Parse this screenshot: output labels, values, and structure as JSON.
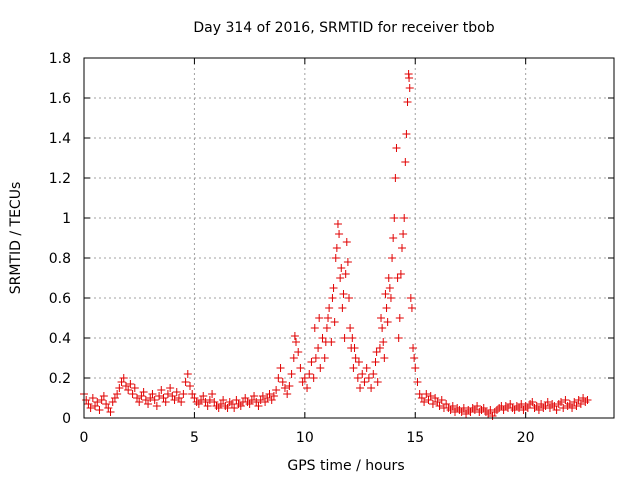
{
  "colors": {
    "series": "#e00000",
    "grid": "#a0a0a0",
    "axis": "#000000"
  },
  "chart_data": {
    "type": "scatter",
    "title": "Day 314 of 2016, SRMTID for receiver tbob",
    "xlabel": "GPS time / hours",
    "ylabel": "SRMTID / TECUs",
    "xlim": [
      0,
      24
    ],
    "ylim": [
      0,
      1.8
    ],
    "grid": true,
    "marker": "plus",
    "x_ticks": [
      {
        "value": 0,
        "label": "0"
      },
      {
        "value": 5,
        "label": "5"
      },
      {
        "value": 10,
        "label": "10"
      },
      {
        "value": 15,
        "label": "15"
      },
      {
        "value": 20,
        "label": "20"
      }
    ],
    "y_ticks": [
      {
        "value": 0,
        "label": "0"
      },
      {
        "value": 0.2,
        "label": "0.2"
      },
      {
        "value": 0.4,
        "label": "0.4"
      },
      {
        "value": 0.6,
        "label": "0.6"
      },
      {
        "value": 0.8,
        "label": "0.8"
      },
      {
        "value": 1.0,
        "label": "1"
      },
      {
        "value": 1.2,
        "label": "1.2"
      },
      {
        "value": 1.4,
        "label": "1.4"
      },
      {
        "value": 1.6,
        "label": "1.6"
      },
      {
        "value": 1.8,
        "label": "1.8"
      }
    ],
    "series": [
      {
        "name": "SRMTID",
        "points": [
          [
            0.0,
            0.12
          ],
          [
            0.1,
            0.09
          ],
          [
            0.2,
            0.07
          ],
          [
            0.3,
            0.05
          ],
          [
            0.4,
            0.1
          ],
          [
            0.5,
            0.06
          ],
          [
            0.6,
            0.08
          ],
          [
            0.7,
            0.04
          ],
          [
            0.8,
            0.09
          ],
          [
            0.9,
            0.11
          ],
          [
            1.0,
            0.07
          ],
          [
            1.1,
            0.05
          ],
          [
            1.2,
            0.03
          ],
          [
            1.3,
            0.08
          ],
          [
            1.4,
            0.1
          ],
          [
            1.5,
            0.12
          ],
          [
            1.6,
            0.15
          ],
          [
            1.7,
            0.18
          ],
          [
            1.8,
            0.2
          ],
          [
            1.9,
            0.16
          ],
          [
            2.0,
            0.14
          ],
          [
            2.1,
            0.17
          ],
          [
            2.2,
            0.12
          ],
          [
            2.3,
            0.15
          ],
          [
            2.4,
            0.1
          ],
          [
            2.5,
            0.08
          ],
          [
            2.6,
            0.11
          ],
          [
            2.7,
            0.13
          ],
          [
            2.8,
            0.09
          ],
          [
            2.9,
            0.07
          ],
          [
            3.0,
            0.1
          ],
          [
            3.1,
            0.12
          ],
          [
            3.2,
            0.09
          ],
          [
            3.3,
            0.06
          ],
          [
            3.4,
            0.11
          ],
          [
            3.5,
            0.14
          ],
          [
            3.6,
            0.1
          ],
          [
            3.7,
            0.08
          ],
          [
            3.8,
            0.12
          ],
          [
            3.9,
            0.15
          ],
          [
            4.0,
            0.11
          ],
          [
            4.1,
            0.09
          ],
          [
            4.2,
            0.13
          ],
          [
            4.3,
            0.1
          ],
          [
            4.4,
            0.08
          ],
          [
            4.5,
            0.12
          ],
          [
            4.6,
            0.18
          ],
          [
            4.7,
            0.22
          ],
          [
            4.8,
            0.16
          ],
          [
            4.9,
            0.12
          ],
          [
            5.0,
            0.1
          ],
          [
            5.1,
            0.08
          ],
          [
            5.2,
            0.07
          ],
          [
            5.3,
            0.09
          ],
          [
            5.4,
            0.11
          ],
          [
            5.5,
            0.08
          ],
          [
            5.6,
            0.06
          ],
          [
            5.7,
            0.09
          ],
          [
            5.8,
            0.12
          ],
          [
            5.9,
            0.08
          ],
          [
            6.0,
            0.06
          ],
          [
            6.1,
            0.05
          ],
          [
            6.2,
            0.07
          ],
          [
            6.3,
            0.09
          ],
          [
            6.4,
            0.06
          ],
          [
            6.5,
            0.05
          ],
          [
            6.6,
            0.08
          ],
          [
            6.7,
            0.07
          ],
          [
            6.8,
            0.05
          ],
          [
            6.9,
            0.09
          ],
          [
            7.0,
            0.07
          ],
          [
            7.1,
            0.06
          ],
          [
            7.2,
            0.08
          ],
          [
            7.3,
            0.1
          ],
          [
            7.4,
            0.08
          ],
          [
            7.5,
            0.07
          ],
          [
            7.6,
            0.09
          ],
          [
            7.7,
            0.11
          ],
          [
            7.8,
            0.08
          ],
          [
            7.9,
            0.06
          ],
          [
            8.0,
            0.09
          ],
          [
            8.1,
            0.11
          ],
          [
            8.2,
            0.08
          ],
          [
            8.3,
            0.1
          ],
          [
            8.4,
            0.12
          ],
          [
            8.5,
            0.09
          ],
          [
            8.6,
            0.11
          ],
          [
            8.7,
            0.14
          ],
          [
            8.8,
            0.2
          ],
          [
            8.9,
            0.25
          ],
          [
            9.0,
            0.18
          ],
          [
            9.1,
            0.15
          ],
          [
            9.2,
            0.12
          ],
          [
            9.3,
            0.16
          ],
          [
            9.4,
            0.22
          ],
          [
            9.5,
            0.3
          ],
          [
            9.6,
            0.38
          ],
          [
            9.7,
            0.33
          ],
          [
            9.8,
            0.25
          ],
          [
            9.9,
            0.18
          ],
          [
            10.0,
            0.2
          ],
          [
            10.1,
            0.15
          ],
          [
            10.2,
            0.22
          ],
          [
            10.3,
            0.28
          ],
          [
            10.4,
            0.2
          ],
          [
            10.5,
            0.3
          ],
          [
            10.6,
            0.35
          ],
          [
            10.7,
            0.25
          ],
          [
            10.8,
            0.4
          ],
          [
            10.9,
            0.3
          ],
          [
            11.0,
            0.45
          ],
          [
            11.1,
            0.55
          ],
          [
            11.2,
            0.38
          ],
          [
            11.3,
            0.65
          ],
          [
            11.4,
            0.8
          ],
          [
            11.5,
            0.97
          ],
          [
            11.6,
            0.7
          ],
          [
            11.7,
            0.55
          ],
          [
            11.8,
            0.4
          ],
          [
            11.9,
            0.88
          ],
          [
            12.0,
            0.6
          ],
          [
            12.1,
            0.35
          ],
          [
            12.2,
            0.25
          ],
          [
            12.3,
            0.3
          ],
          [
            12.4,
            0.2
          ],
          [
            12.5,
            0.15
          ],
          [
            12.6,
            0.22
          ],
          [
            12.7,
            0.18
          ],
          [
            12.8,
            0.25
          ],
          [
            12.9,
            0.2
          ],
          [
            13.0,
            0.15
          ],
          [
            13.1,
            0.22
          ],
          [
            13.2,
            0.28
          ],
          [
            13.3,
            0.18
          ],
          [
            13.4,
            0.35
          ],
          [
            13.5,
            0.45
          ],
          [
            13.6,
            0.3
          ],
          [
            13.7,
            0.55
          ],
          [
            13.8,
            0.7
          ],
          [
            13.9,
            0.6
          ],
          [
            14.0,
            0.9
          ],
          [
            14.1,
            1.2
          ],
          [
            14.2,
            0.7
          ],
          [
            14.3,
            0.5
          ],
          [
            14.4,
            0.85
          ],
          [
            14.5,
            1.0
          ],
          [
            14.6,
            1.42
          ],
          [
            14.7,
            1.72
          ],
          [
            14.8,
            0.6
          ],
          [
            14.9,
            0.35
          ],
          [
            15.0,
            0.25
          ],
          [
            15.1,
            0.18
          ],
          [
            15.2,
            0.12
          ],
          [
            15.3,
            0.1
          ],
          [
            15.4,
            0.08
          ],
          [
            15.5,
            0.12
          ],
          [
            15.6,
            0.09
          ],
          [
            15.7,
            0.11
          ],
          [
            15.8,
            0.07
          ],
          [
            15.9,
            0.1
          ],
          [
            16.0,
            0.08
          ],
          [
            16.1,
            0.06
          ],
          [
            16.2,
            0.09
          ],
          [
            16.3,
            0.05
          ],
          [
            16.4,
            0.07
          ],
          [
            16.5,
            0.05
          ],
          [
            16.6,
            0.04
          ],
          [
            16.7,
            0.06
          ],
          [
            16.8,
            0.03
          ],
          [
            16.9,
            0.05
          ],
          [
            17.0,
            0.04
          ],
          [
            17.1,
            0.03
          ],
          [
            17.2,
            0.05
          ],
          [
            17.3,
            0.02
          ],
          [
            17.4,
            0.04
          ],
          [
            17.5,
            0.03
          ],
          [
            17.6,
            0.05
          ],
          [
            17.7,
            0.04
          ],
          [
            17.8,
            0.06
          ],
          [
            17.9,
            0.03
          ],
          [
            18.0,
            0.04
          ],
          [
            18.1,
            0.05
          ],
          [
            18.2,
            0.03
          ],
          [
            18.3,
            0.02
          ],
          [
            18.4,
            0.04
          ],
          [
            18.5,
            0.01
          ],
          [
            18.6,
            0.03
          ],
          [
            18.7,
            0.04
          ],
          [
            18.8,
            0.05
          ],
          [
            18.9,
            0.06
          ],
          [
            19.0,
            0.04
          ],
          [
            19.1,
            0.06
          ],
          [
            19.2,
            0.05
          ],
          [
            19.3,
            0.07
          ],
          [
            19.4,
            0.05
          ],
          [
            19.5,
            0.04
          ],
          [
            19.6,
            0.06
          ],
          [
            19.7,
            0.05
          ],
          [
            19.8,
            0.07
          ],
          [
            19.9,
            0.04
          ],
          [
            20.0,
            0.06
          ],
          [
            20.1,
            0.05
          ],
          [
            20.2,
            0.07
          ],
          [
            20.3,
            0.08
          ],
          [
            20.4,
            0.05
          ],
          [
            20.5,
            0.06
          ],
          [
            20.6,
            0.04
          ],
          [
            20.7,
            0.07
          ],
          [
            20.8,
            0.05
          ],
          [
            20.9,
            0.06
          ],
          [
            21.0,
            0.08
          ],
          [
            21.1,
            0.05
          ],
          [
            21.2,
            0.07
          ],
          [
            21.3,
            0.06
          ],
          [
            21.4,
            0.04
          ],
          [
            21.5,
            0.07
          ],
          [
            21.6,
            0.08
          ],
          [
            21.7,
            0.05
          ],
          [
            21.8,
            0.09
          ],
          [
            21.9,
            0.06
          ],
          [
            22.0,
            0.07
          ],
          [
            22.1,
            0.05
          ],
          [
            22.2,
            0.08
          ],
          [
            22.3,
            0.06
          ],
          [
            22.4,
            0.09
          ],
          [
            22.5,
            0.07
          ],
          [
            22.6,
            0.1
          ],
          [
            22.7,
            0.08
          ],
          [
            22.8,
            0.09
          ],
          [
            9.55,
            0.41
          ],
          [
            10.95,
            0.38
          ],
          [
            11.05,
            0.5
          ],
          [
            11.25,
            0.6
          ],
          [
            11.35,
            0.48
          ],
          [
            11.45,
            0.85
          ],
          [
            11.55,
            0.92
          ],
          [
            11.65,
            0.75
          ],
          [
            11.75,
            0.62
          ],
          [
            11.85,
            0.72
          ],
          [
            11.95,
            0.78
          ],
          [
            12.05,
            0.45
          ],
          [
            12.15,
            0.4
          ],
          [
            13.55,
            0.38
          ],
          [
            13.75,
            0.48
          ],
          [
            13.85,
            0.65
          ],
          [
            13.95,
            0.8
          ],
          [
            14.05,
            1.0
          ],
          [
            14.15,
            1.35
          ],
          [
            14.25,
            0.4
          ],
          [
            14.35,
            0.72
          ],
          [
            14.45,
            0.92
          ],
          [
            14.55,
            1.28
          ],
          [
            14.65,
            1.58
          ],
          [
            14.72,
            1.7
          ],
          [
            14.75,
            1.65
          ],
          [
            14.85,
            0.55
          ],
          [
            10.45,
            0.45
          ],
          [
            10.65,
            0.5
          ],
          [
            12.25,
            0.35
          ],
          [
            12.45,
            0.28
          ],
          [
            13.25,
            0.33
          ],
          [
            13.45,
            0.5
          ],
          [
            13.65,
            0.62
          ],
          [
            14.95,
            0.3
          ]
        ]
      }
    ]
  }
}
